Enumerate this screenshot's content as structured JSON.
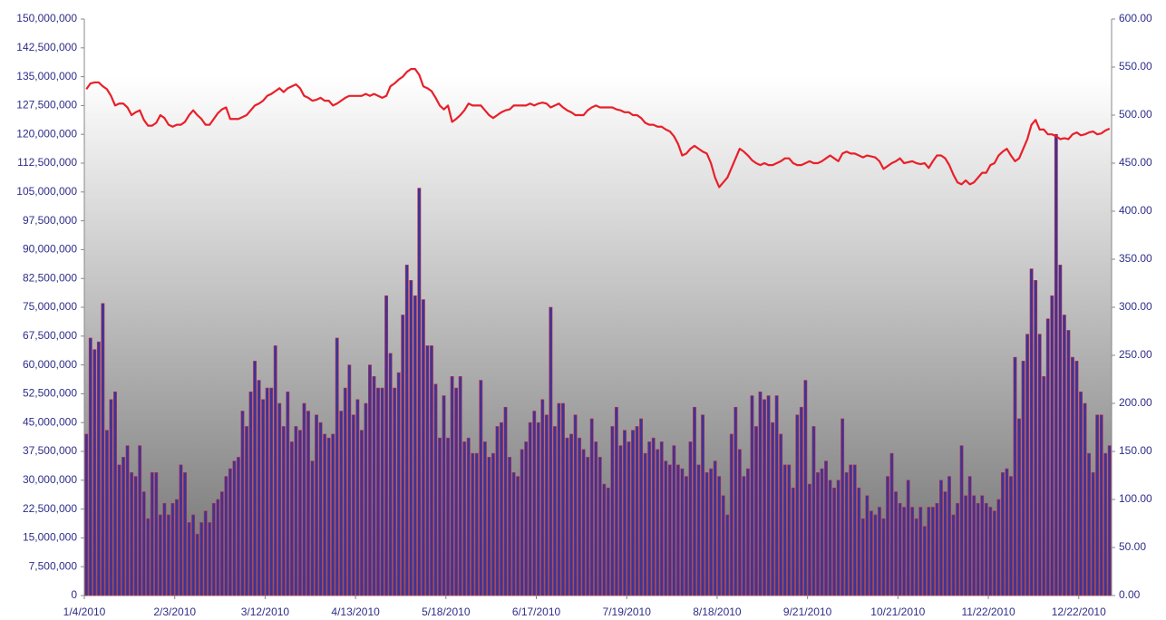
{
  "chart_data": {
    "type": "bar-line",
    "categories": [
      "1/4/2010",
      null,
      null,
      null,
      null,
      null,
      null,
      null,
      null,
      null,
      null,
      null,
      null,
      null,
      null,
      null,
      null,
      null,
      null,
      null,
      null,
      null,
      "2/3/2010",
      null,
      null,
      null,
      null,
      null,
      null,
      null,
      null,
      null,
      null,
      null,
      null,
      null,
      null,
      null,
      null,
      null,
      null,
      null,
      null,
      null,
      "3/12/2010",
      null,
      null,
      null,
      null,
      null,
      null,
      null,
      null,
      null,
      null,
      null,
      null,
      null,
      null,
      null,
      null,
      null,
      null,
      null,
      null,
      null,
      "4/13/2010",
      null,
      null,
      null,
      null,
      null,
      null,
      null,
      null,
      null,
      null,
      null,
      null,
      null,
      null,
      null,
      null,
      null,
      null,
      null,
      null,
      null,
      "5/18/2010",
      null,
      null,
      null,
      null,
      null,
      null,
      null,
      null,
      null,
      null,
      null,
      null,
      null,
      null,
      null,
      null,
      null,
      null,
      null,
      null,
      null,
      "6/17/2010",
      null,
      null,
      null,
      null,
      null,
      null,
      null,
      null,
      null,
      null,
      null,
      null,
      null,
      null,
      null,
      null,
      null,
      null,
      null,
      null,
      null,
      "7/19/2010",
      null,
      null,
      null,
      null,
      null,
      null,
      null,
      null,
      null,
      null,
      null,
      null,
      null,
      null,
      null,
      null,
      null,
      null,
      null,
      null,
      null,
      "8/18/2010",
      null,
      null,
      null,
      null,
      null,
      null,
      null,
      null,
      null,
      null,
      null,
      null,
      null,
      null,
      null,
      null,
      null,
      null,
      null,
      null,
      null,
      "9/21/2010",
      null,
      null,
      null,
      null,
      null,
      null,
      null,
      null,
      null,
      null,
      null,
      null,
      null,
      null,
      null,
      null,
      null,
      null,
      null,
      null,
      null,
      "10/21/2010",
      null,
      null,
      null,
      null,
      null,
      null,
      null,
      null,
      null,
      null,
      null,
      null,
      null,
      null,
      null,
      null,
      null,
      null,
      null,
      null,
      null,
      "11/22/2010",
      null,
      null,
      null,
      null,
      null,
      null,
      null,
      null,
      null,
      null,
      null,
      null,
      null,
      null,
      null,
      null,
      null,
      null,
      null,
      null,
      null,
      "12/22/2010",
      null,
      null,
      null,
      null,
      null,
      null,
      null
    ],
    "series": [
      {
        "color": "#3b3598",
        "edge": "#c0304a",
        "values": [
          42000000,
          67000000,
          64000000,
          66000000,
          76000000,
          43000000,
          51000000,
          53000000,
          34000000,
          36000000,
          39000000,
          32000000,
          31000000,
          39000000,
          27000000,
          20000000,
          32000000,
          32000000,
          21000000,
          24000000,
          21000000,
          24000000,
          25000000,
          34000000,
          32000000,
          19000000,
          21000000,
          16000000,
          19000000,
          22000000,
          19000000,
          24000000,
          25000000,
          27000000,
          31000000,
          33000000,
          35000000,
          36000000,
          48000000,
          44000000,
          53000000,
          61000000,
          56000000,
          51000000,
          54000000,
          54000000,
          65000000,
          50000000,
          44000000,
          53000000,
          40000000,
          44000000,
          43000000,
          50000000,
          48000000,
          35000000,
          47000000,
          45000000,
          42000000,
          41000000,
          42000000,
          67000000,
          48000000,
          54000000,
          60000000,
          47000000,
          51000000,
          43000000,
          50000000,
          60000000,
          57000000,
          54000000,
          54000000,
          78000000,
          63000000,
          54000000,
          58000000,
          73000000,
          86000000,
          82000000,
          78000000,
          106000000,
          77000000,
          65000000,
          65000000,
          55000000,
          41000000,
          52000000,
          41000000,
          57000000,
          54000000,
          57000000,
          40000000,
          41000000,
          37000000,
          37000000,
          56000000,
          40000000,
          36000000,
          37000000,
          44000000,
          45000000,
          49000000,
          36000000,
          32000000,
          31000000,
          38000000,
          40000000,
          45000000,
          48000000,
          45000000,
          51000000,
          47000000,
          75000000,
          44000000,
          50000000,
          50000000,
          41000000,
          42000000,
          47000000,
          41000000,
          38000000,
          36000000,
          46000000,
          40000000,
          36000000,
          29000000,
          28000000,
          44000000,
          49000000,
          39000000,
          43000000,
          40000000,
          43000000,
          44000000,
          46000000,
          37000000,
          40000000,
          41000000,
          38000000,
          40000000,
          35000000,
          34000000,
          39000000,
          34000000,
          33000000,
          31000000,
          40000000,
          49000000,
          34000000,
          47000000,
          32000000,
          33000000,
          35000000,
          31000000,
          26000000,
          21000000,
          42000000,
          49000000,
          38000000,
          31000000,
          33000000,
          52000000,
          44000000,
          53000000,
          51000000,
          52000000,
          45000000,
          52000000,
          42000000,
          34000000,
          34000000,
          28000000,
          47000000,
          49000000,
          56000000,
          29000000,
          44000000,
          32000000,
          33000000,
          35000000,
          30000000,
          28000000,
          30000000,
          46000000,
          32000000,
          34000000,
          34000000,
          28000000,
          20000000,
          26000000,
          22000000,
          21000000,
          23000000,
          20000000,
          31000000,
          37000000,
          27000000,
          24000000,
          23000000,
          30000000,
          23000000,
          20000000,
          23000000,
          18000000,
          23000000,
          23000000,
          24000000,
          30000000,
          27000000,
          31000000,
          21000000,
          24000000,
          39000000,
          26000000,
          31000000,
          26000000,
          24000000,
          26000000,
          24000000,
          23000000,
          22000000,
          25000000,
          32000000,
          33000000,
          31000000,
          62000000,
          46000000,
          61000000,
          68000000,
          85000000,
          82000000,
          68000000,
          57000000,
          72000000,
          78000000,
          120000000,
          86000000,
          73000000,
          69000000,
          62000000,
          61000000,
          53000000,
          50000000,
          37000000,
          32000000,
          47000000,
          47000000,
          37000000,
          39000000
        ]
      },
      {
        "color": "#e8202a",
        "axis": "y2",
        "values": [
          527,
          533,
          534,
          534,
          530,
          527,
          520,
          510,
          512,
          512,
          508,
          500,
          503,
          505,
          495,
          489,
          489,
          492,
          500,
          497,
          490,
          488,
          490,
          490,
          493,
          500,
          505,
          500,
          496,
          490,
          490,
          496,
          502,
          506,
          508,
          496,
          496,
          496,
          498,
          500,
          505,
          510,
          512,
          515,
          520,
          522,
          525,
          528,
          524,
          528,
          530,
          532,
          528,
          520,
          518,
          515,
          516,
          518,
          515,
          515,
          510,
          512,
          515,
          518,
          520,
          520,
          520,
          520,
          522,
          520,
          522,
          520,
          518,
          520,
          530,
          533,
          537,
          540,
          545,
          548,
          548,
          542,
          530,
          528,
          525,
          518,
          510,
          506,
          510,
          493,
          496,
          500,
          505,
          512,
          510,
          510,
          510,
          505,
          500,
          497,
          500,
          503,
          505,
          506,
          510,
          510,
          510,
          510,
          512,
          510,
          512,
          513,
          512,
          508,
          510,
          512,
          508,
          505,
          503,
          500,
          500,
          500,
          505,
          508,
          510,
          508,
          508,
          508,
          508,
          506,
          505,
          503,
          503,
          500,
          500,
          497,
          492,
          490,
          490,
          488,
          488,
          485,
          483,
          478,
          470,
          458,
          460,
          465,
          468,
          465,
          462,
          460,
          450,
          435,
          425,
          430,
          435,
          445,
          455,
          465,
          462,
          458,
          453,
          450,
          448,
          450,
          448,
          448,
          450,
          452,
          455,
          455,
          450,
          448,
          448,
          450,
          452,
          450,
          450,
          452,
          455,
          458,
          455,
          452,
          460,
          462,
          460,
          460,
          458,
          456,
          458,
          457,
          456,
          452,
          444,
          447,
          450,
          452,
          455,
          450,
          451,
          452,
          450,
          449,
          450,
          445,
          452,
          458,
          458,
          455,
          448,
          438,
          430,
          428,
          432,
          428,
          430,
          435,
          440,
          440,
          448,
          450,
          458,
          462,
          465,
          458,
          452,
          455,
          465,
          475,
          490,
          495,
          485,
          485,
          480,
          480,
          478,
          475,
          476,
          475,
          480,
          482,
          479,
          480,
          482,
          483,
          480,
          481,
          484,
          486
        ]
      }
    ],
    "ylim": [
      0,
      150000000
    ],
    "yticks": [
      0,
      {
        "value": 7500000,
        "label": "7,500,000"
      },
      {
        "value": 15000000,
        "label": "15,000,000"
      },
      {
        "value": 22500000,
        "label": "22,500,000"
      },
      {
        "value": 30000000,
        "label": "30,000,000"
      },
      {
        "value": 37500000,
        "label": "37,500,000"
      },
      {
        "value": 45000000,
        "label": "45,000,000"
      },
      {
        "value": 52500000,
        "label": "52,500,000"
      },
      {
        "value": 60000000,
        "label": "60,000,000"
      },
      {
        "value": 67500000,
        "label": "67,500,000"
      },
      {
        "value": 75000000,
        "label": "75,000,000"
      },
      {
        "value": 82500000,
        "label": "82,500,000"
      },
      {
        "value": 90000000,
        "label": "90,000,000"
      },
      {
        "value": 97500000,
        "label": "97,500,000"
      },
      {
        "value": 105000000,
        "label": "105,000,000"
      },
      {
        "value": 112500000,
        "label": "112,500,000"
      },
      {
        "value": 120000000,
        "label": "120,000,000"
      },
      {
        "value": 127500000,
        "label": "127,500,000"
      },
      {
        "value": 135000000,
        "label": "135,000,000"
      },
      {
        "value": 142500000,
        "label": "142,500,000"
      },
      {
        "value": 150000000,
        "label": "150,000,000"
      }
    ],
    "y2lim": [
      0,
      600
    ],
    "y2ticks": [
      {
        "value": 0,
        "label": "0.00"
      },
      {
        "value": 50,
        "label": "50.00"
      },
      {
        "value": 100,
        "label": "100.00"
      },
      {
        "value": 150,
        "label": "150.00"
      },
      {
        "value": 200,
        "label": "200.00"
      },
      {
        "value": 250,
        "label": "250.00"
      },
      {
        "value": 300,
        "label": "300.00"
      },
      {
        "value": 350,
        "label": "350.00"
      },
      {
        "value": 400,
        "label": "400.00"
      },
      {
        "value": 450,
        "label": "450.00"
      },
      {
        "value": 500,
        "label": "500.00"
      },
      {
        "value": 550,
        "label": "550.00"
      },
      {
        "value": 600,
        "label": "600.00"
      }
    ]
  }
}
